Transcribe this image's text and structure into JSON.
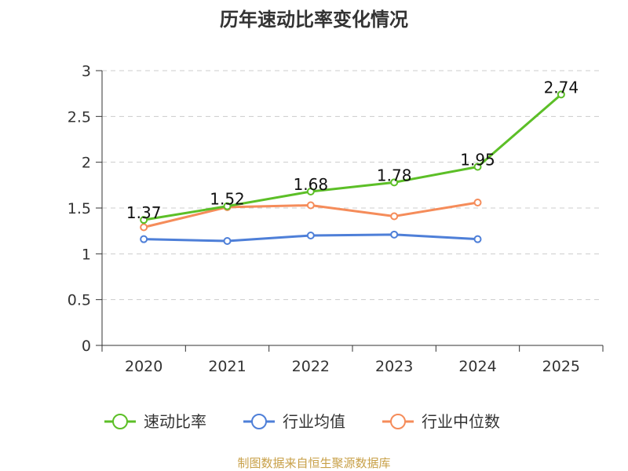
{
  "chart_data": {
    "type": "line",
    "title": "历年速动比率变化情况",
    "categories": [
      "2020",
      "2021",
      "2022",
      "2023",
      "2024",
      "2025"
    ],
    "ylim": [
      0,
      3
    ],
    "yticks": [
      "0",
      "0.5",
      "1",
      "1.5",
      "2",
      "2.5",
      "3"
    ],
    "grid": true,
    "legend_position": "bottom",
    "series": [
      {
        "name": "速动比率",
        "color": "#5cbf27",
        "values": [
          1.37,
          1.52,
          1.68,
          1.78,
          1.95,
          2.74
        ],
        "labels": [
          "1.37",
          "1.52",
          "1.68",
          "1.78",
          "1.95",
          "2.74"
        ]
      },
      {
        "name": "行业均值",
        "color": "#4e7fd8",
        "values": [
          1.16,
          1.14,
          1.2,
          1.21,
          1.16,
          null
        ]
      },
      {
        "name": "行业中位数",
        "color": "#f58c5a",
        "values": [
          1.29,
          1.51,
          1.53,
          1.41,
          1.56,
          null
        ]
      }
    ]
  },
  "source": {
    "text": "制图数据来自恒生聚源数据库",
    "color": "#c8a048"
  }
}
